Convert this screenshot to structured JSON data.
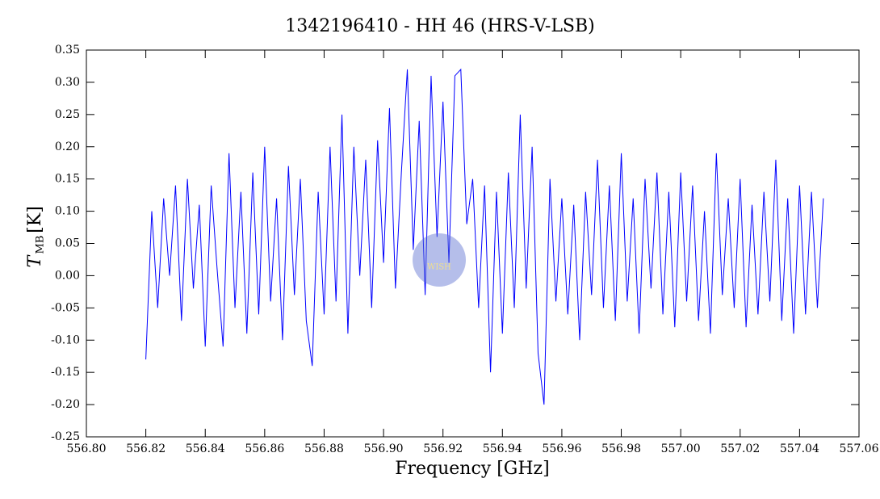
{
  "chart_data": {
    "type": "line",
    "title": "1342196410 - HH 46 (HRS-V-LSB)",
    "xlabel": "Frequency [GHz]",
    "ylabel": "T",
    "ylabel_sub": "MB",
    "ylabel_unit": "[K]",
    "watermark": "WISH",
    "xlim": [
      556.8,
      557.06
    ],
    "ylim": [
      -0.25,
      0.35
    ],
    "xticks": [
      {
        "value": 556.8,
        "label": "556.80"
      },
      {
        "value": 556.82,
        "label": "556.82"
      },
      {
        "value": 556.84,
        "label": "556.84"
      },
      {
        "value": 556.86,
        "label": "556.86"
      },
      {
        "value": 556.88,
        "label": "556.88"
      },
      {
        "value": 556.9,
        "label": "556.90"
      },
      {
        "value": 556.92,
        "label": "556.92"
      },
      {
        "value": 556.94,
        "label": "556.94"
      },
      {
        "value": 556.96,
        "label": "556.96"
      },
      {
        "value": 556.98,
        "label": "556.98"
      },
      {
        "value": 557,
        "label": "557.00"
      },
      {
        "value": 557.02,
        "label": "557.02"
      },
      {
        "value": 557.04,
        "label": "557.04"
      },
      {
        "value": 557.06,
        "label": "557.06"
      }
    ],
    "yticks": [
      {
        "value": -0.25,
        "label": "-0.25"
      },
      {
        "value": -0.2,
        "label": "-0.20"
      },
      {
        "value": -0.15,
        "label": "-0.15"
      },
      {
        "value": -0.1,
        "label": "-0.10"
      },
      {
        "value": -0.05,
        "label": "-0.05"
      },
      {
        "value": 0,
        "label": "0.00"
      },
      {
        "value": 0.05,
        "label": "0.05"
      },
      {
        "value": 0.1,
        "label": "0.10"
      },
      {
        "value": 0.15,
        "label": "0.15"
      },
      {
        "value": 0.2,
        "label": "0.20"
      },
      {
        "value": 0.25,
        "label": "0.25"
      },
      {
        "value": 0.3,
        "label": "0.30"
      },
      {
        "value": 0.35,
        "label": "0.35"
      }
    ],
    "grid": false,
    "x": [
      556.82,
      556.822,
      556.824,
      556.826,
      556.828,
      556.83,
      556.832,
      556.834,
      556.836,
      556.838,
      556.84,
      556.842,
      556.844,
      556.846,
      556.848,
      556.85,
      556.852,
      556.854,
      556.856,
      556.858,
      556.86,
      556.862,
      556.864,
      556.866,
      556.868,
      556.87,
      556.872,
      556.874,
      556.876,
      556.878,
      556.88,
      556.882,
      556.884,
      556.886,
      556.888,
      556.89,
      556.892,
      556.894,
      556.896,
      556.898,
      556.9,
      556.902,
      556.904,
      556.906,
      556.908,
      556.91,
      556.912,
      556.914,
      556.916,
      556.918,
      556.92,
      556.922,
      556.924,
      556.926,
      556.928,
      556.93,
      556.932,
      556.934,
      556.936,
      556.938,
      556.94,
      556.942,
      556.944,
      556.946,
      556.948,
      556.95,
      556.952,
      556.954,
      556.956,
      556.958,
      556.96,
      556.962,
      556.964,
      556.966,
      556.968,
      556.97,
      556.972,
      556.974,
      556.976,
      556.978,
      556.98,
      556.982,
      556.984,
      556.986,
      556.988,
      556.99,
      556.992,
      556.994,
      556.996,
      556.998,
      557,
      557.002,
      557.004,
      557.006,
      557.008,
      557.01,
      557.012,
      557.014,
      557.016,
      557.018,
      557.02,
      557.022,
      557.024,
      557.026,
      557.028,
      557.03,
      557.032,
      557.034,
      557.036,
      557.038,
      557.04,
      557.042,
      557.044,
      557.046,
      557.048
    ],
    "series": [
      {
        "color": "#0000ff",
        "values": [
          -0.13,
          0.1,
          -0.05,
          0.12,
          0,
          0.14,
          -0.07,
          0.15,
          -0.02,
          0.11,
          -0.11,
          0.14,
          0.01,
          -0.11,
          0.19,
          -0.05,
          0.13,
          -0.09,
          0.16,
          -0.06,
          0.2,
          -0.04,
          0.12,
          -0.1,
          0.17,
          -0.03,
          0.15,
          -0.07,
          -0.14,
          0.13,
          -0.06,
          0.2,
          -0.04,
          0.25,
          -0.09,
          0.2,
          0,
          0.18,
          -0.05,
          0.21,
          0.02,
          0.26,
          -0.02,
          0.16,
          0.32,
          0.04,
          0.24,
          -0.03,
          0.31,
          0.06,
          0.27,
          0.02,
          0.31,
          0.32,
          0.08,
          0.15,
          -0.05,
          0.14,
          -0.15,
          0.13,
          -0.09,
          0.16,
          -0.05,
          0.25,
          -0.02,
          0.2,
          -0.12,
          -0.2,
          0.15,
          -0.04,
          0.12,
          -0.06,
          0.11,
          -0.1,
          0.13,
          -0.03,
          0.18,
          -0.05,
          0.14,
          -0.07,
          0.19,
          -0.04,
          0.12,
          -0.09,
          0.15,
          -0.02,
          0.16,
          -0.06,
          0.13,
          -0.08,
          0.16,
          -0.04,
          0.14,
          -0.07,
          0.1,
          -0.09,
          0.19,
          -0.03,
          0.12,
          -0.05,
          0.15,
          -0.08,
          0.11,
          -0.06,
          0.13,
          -0.04,
          0.18,
          -0.07,
          0.12,
          -0.09,
          0.14,
          -0.06,
          0.13,
          -0.05,
          0.12
        ]
      }
    ]
  }
}
